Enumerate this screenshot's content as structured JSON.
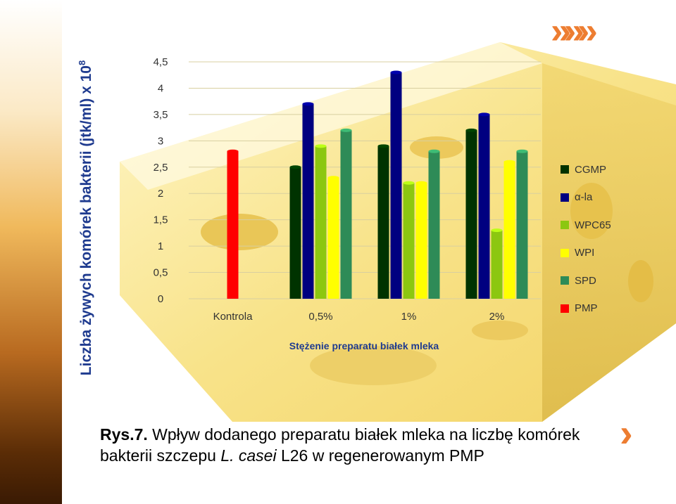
{
  "chart_data": {
    "type": "bar",
    "title": "",
    "ylabel": "Liczba żywych komórek bakterii (jtk/ml) x 10",
    "ylabel_exponent": "8",
    "xlabel": "Stężenie preparatu białek mleka",
    "categories": [
      "Kontrola",
      "0,5%",
      "1%",
      "2%"
    ],
    "ylim": [
      0,
      4.5
    ],
    "yticks": [
      "0",
      "0,5",
      "1",
      "1,5",
      "2",
      "2,5",
      "3",
      "3,5",
      "4",
      "4,5"
    ],
    "legend_position": "right",
    "grid": true,
    "series": [
      {
        "name": "CGMP",
        "color": "#003300",
        "values": [
          null,
          2.5,
          2.9,
          3.2
        ]
      },
      {
        "name": "α-la",
        "color": "#000080",
        "values": [
          null,
          3.7,
          4.3,
          3.5
        ]
      },
      {
        "name": "WPC65",
        "color": "#8cc710",
        "values": [
          null,
          2.9,
          2.2,
          1.3
        ]
      },
      {
        "name": "WPI",
        "color": "#ffff00",
        "values": [
          null,
          2.3,
          2.2,
          2.6
        ]
      },
      {
        "name": "SPD",
        "color": "#2e8b57",
        "values": [
          null,
          3.2,
          2.8,
          2.8
        ]
      },
      {
        "name": "PMP",
        "color": "#ff0000",
        "values": [
          2.8,
          null,
          null,
          null
        ]
      }
    ]
  },
  "caption": {
    "prefix": "Rys.7.",
    "part1": " Wpływ dodanego preparatu białek mleka na liczbę komórek bakterii szczepu ",
    "italic": "L. casei",
    "part2": " L26 w regenerowanym PMP"
  },
  "decor": {
    "chevrons": "»»»",
    "chevron_small": "›"
  }
}
